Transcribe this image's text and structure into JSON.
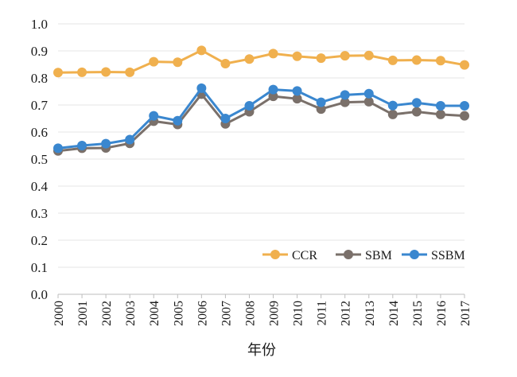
{
  "chart_data": {
    "type": "line",
    "title": "",
    "xlabel": "年份",
    "ylabel": "",
    "ylim": [
      0.0,
      1.0
    ],
    "yticks": [
      "0.0",
      "0.1",
      "0.2",
      "0.3",
      "0.4",
      "0.5",
      "0.6",
      "0.7",
      "0.8",
      "0.9",
      "1.0"
    ],
    "categories": [
      "2000",
      "2001",
      "2002",
      "2003",
      "2004",
      "2005",
      "2006",
      "2007",
      "2008",
      "2009",
      "2010",
      "2011",
      "2012",
      "2013",
      "2014",
      "2015",
      "2016",
      "2017"
    ],
    "grid": "horizontal",
    "legend_position": "bottom-right",
    "series": [
      {
        "name": "CCR",
        "color": "#F0B04E",
        "values": [
          0.82,
          0.821,
          0.822,
          0.821,
          0.86,
          0.858,
          0.902,
          0.853,
          0.87,
          0.89,
          0.88,
          0.873,
          0.882,
          0.883,
          0.865,
          0.866,
          0.864,
          0.848
        ]
      },
      {
        "name": "SBM",
        "color": "#7A706A",
        "values": [
          0.53,
          0.54,
          0.541,
          0.558,
          0.64,
          0.628,
          0.74,
          0.63,
          0.675,
          0.732,
          0.723,
          0.685,
          0.71,
          0.712,
          0.665,
          0.675,
          0.665,
          0.66
        ]
      },
      {
        "name": "SSBM",
        "color": "#3A87CF",
        "values": [
          0.54,
          0.55,
          0.557,
          0.572,
          0.66,
          0.642,
          0.762,
          0.65,
          0.697,
          0.757,
          0.752,
          0.71,
          0.737,
          0.742,
          0.698,
          0.708,
          0.697,
          0.697
        ]
      }
    ]
  }
}
